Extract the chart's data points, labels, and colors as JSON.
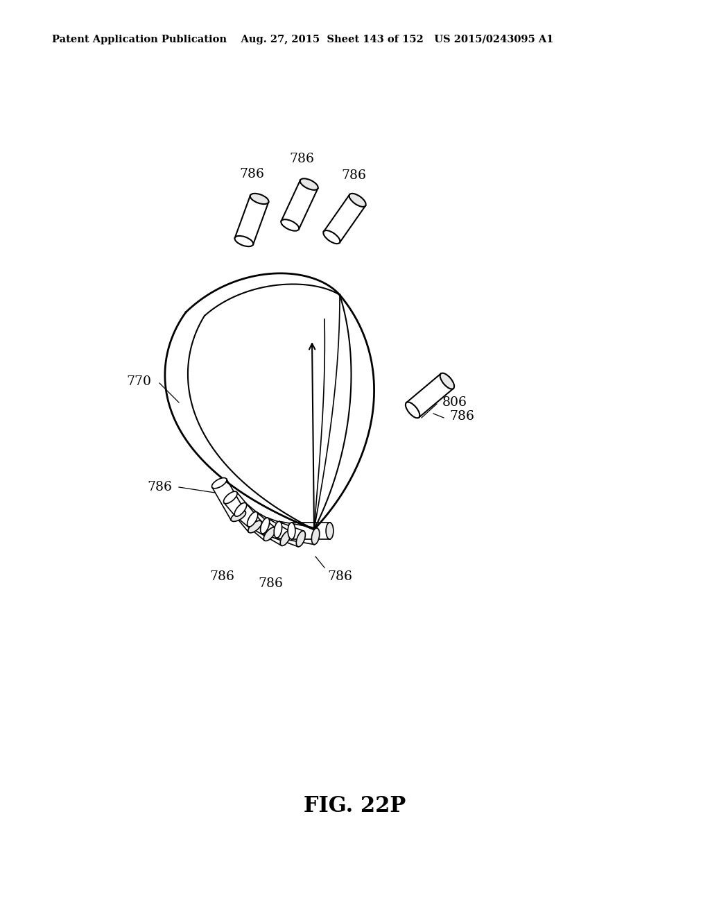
{
  "bg_color": "#ffffff",
  "line_color": "#000000",
  "header_text": "Patent Application Publication    Aug. 27, 2015  Sheet 143 of 152   US 2015/0243095 A1",
  "header_fontsize": 10.5,
  "fig_label": "FIG. 22P",
  "fig_label_fontsize": 22
}
